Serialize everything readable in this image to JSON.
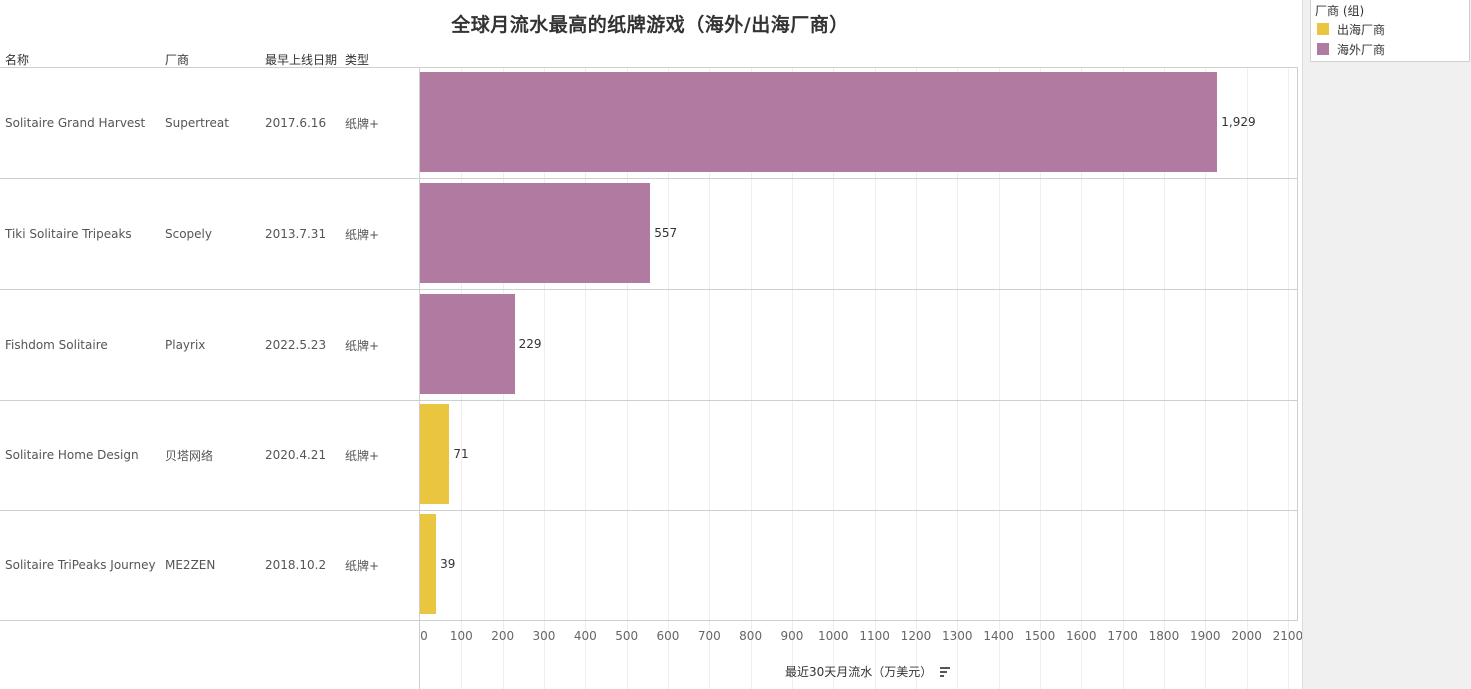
{
  "title": "全球月流水最高的纸牌游戏（海外/出海厂商）",
  "columns": {
    "name": "名称",
    "vendor": "厂商",
    "launch_date": "最早上线日期",
    "type": "类型"
  },
  "rows": [
    {
      "name": "Solitaire Grand Harvest",
      "vendor": "Supertreat",
      "launch_date": "2017.6.16",
      "type": "纸牌+",
      "value": 1929,
      "value_label": "1,929",
      "group": "海外厂商"
    },
    {
      "name": "Tiki Solitaire Tripeaks",
      "vendor": "Scopely",
      "launch_date": "2013.7.31",
      "type": "纸牌+",
      "value": 557,
      "value_label": "557",
      "group": "海外厂商"
    },
    {
      "name": "Fishdom Solitaire",
      "vendor": "Playrix",
      "launch_date": "2022.5.23",
      "type": "纸牌+",
      "value": 229,
      "value_label": "229",
      "group": "海外厂商"
    },
    {
      "name": "Solitaire Home Design",
      "vendor": "贝塔网络",
      "launch_date": "2020.4.21",
      "type": "纸牌+",
      "value": 71,
      "value_label": "71",
      "group": "出海厂商"
    },
    {
      "name": "Solitaire TriPeaks Journey",
      "vendor": "ME2ZEN",
      "launch_date": "2018.10.2",
      "type": "纸牌+",
      "value": 39,
      "value_label": "39",
      "group": "出海厂商"
    }
  ],
  "axis": {
    "title": "最近30天月流水（万美元）",
    "ticks": [
      "0",
      "100",
      "200",
      "300",
      "400",
      "500",
      "600",
      "700",
      "800",
      "900",
      "1000",
      "1100",
      "1200",
      "1300",
      "1400",
      "1500",
      "1600",
      "1700",
      "1800",
      "1900",
      "2000",
      "2100"
    ],
    "sort_icon": "sort-descending-icon"
  },
  "legend": {
    "title": "厂商 (组)",
    "items": [
      {
        "label": "出海厂商",
        "color": "#E9C540"
      },
      {
        "label": "海外厂商",
        "color": "#B07AA1"
      }
    ]
  },
  "colors": {
    "海外厂商": "#B07AA1",
    "出海厂商": "#E9C540"
  },
  "chart_data": {
    "type": "bar",
    "orientation": "horizontal",
    "title": "全球月流水最高的纸牌游戏（海外/出海厂商）",
    "categories": [
      "Solitaire Grand Harvest",
      "Tiki Solitaire Tripeaks",
      "Fishdom Solitaire",
      "Solitaire Home Design",
      "Solitaire TriPeaks Journey"
    ],
    "values": [
      1929,
      557,
      229,
      71,
      39
    ],
    "series": [
      {
        "name": "海外厂商",
        "color": "#B07AA1",
        "values": [
          1929,
          557,
          229,
          null,
          null
        ]
      },
      {
        "name": "出海厂商",
        "color": "#E9C540",
        "values": [
          null,
          null,
          null,
          71,
          39
        ]
      }
    ],
    "table_columns": [
      "名称",
      "厂商",
      "最早上线日期",
      "类型"
    ],
    "table_values": [
      [
        "Solitaire Grand Harvest",
        "Supertreat",
        "2017.6.16",
        "纸牌+"
      ],
      [
        "Tiki Solitaire Tripeaks",
        "Scopely",
        "2013.7.31",
        "纸牌+"
      ],
      [
        "Fishdom Solitaire",
        "Playrix",
        "2022.5.23",
        "纸牌+"
      ],
      [
        "Solitaire Home Design",
        "贝塔网络",
        "2020.4.21",
        "纸牌+"
      ],
      [
        "Solitaire TriPeaks Journey",
        "ME2ZEN",
        "2018.10.2",
        "纸牌+"
      ]
    ],
    "xlabel": "最近30天月流水（万美元）",
    "ylabel": "",
    "xlim": [
      0,
      2100
    ],
    "xticks": [
      0,
      100,
      200,
      300,
      400,
      500,
      600,
      700,
      800,
      900,
      1000,
      1100,
      1200,
      1300,
      1400,
      1500,
      1600,
      1700,
      1800,
      1900,
      2000,
      2100
    ],
    "data_labels": [
      "1,929",
      "557",
      "229",
      "71",
      "39"
    ],
    "legend": {
      "title": "厂商 (组)",
      "entries": [
        "出海厂商",
        "海外厂商"
      ],
      "position": "top-right"
    },
    "grid": true
  }
}
